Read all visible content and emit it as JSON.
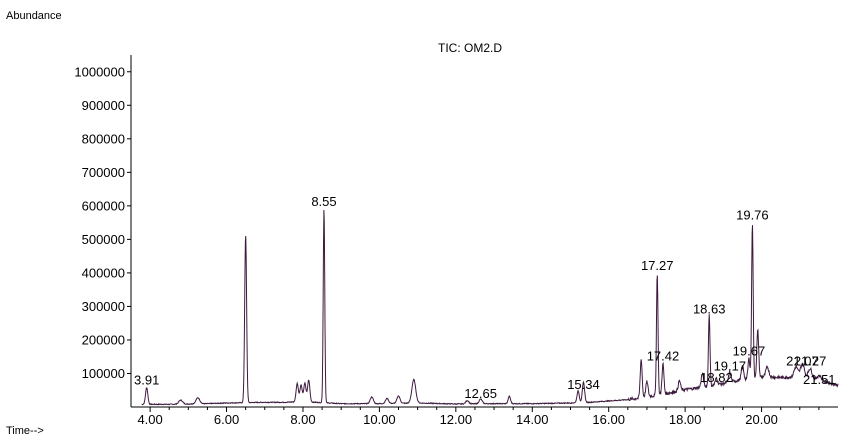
{
  "chart_data": {
    "type": "line",
    "title": "TIC: OM2.D",
    "ylabel": "Abundance",
    "xlabel": "Time-->",
    "xlim": [
      3.5,
      22.0
    ],
    "ylim": [
      0,
      1050000
    ],
    "x_ticks": [
      4.0,
      6.0,
      8.0,
      10.0,
      12.0,
      14.0,
      16.0,
      18.0,
      20.0
    ],
    "x_tick_labels": [
      "4.00",
      "6.00",
      "8.00",
      "10.00",
      "12.00",
      "14.00",
      "16.00",
      "18.00",
      "20.00"
    ],
    "y_ticks": [
      100000,
      200000,
      300000,
      400000,
      500000,
      600000,
      700000,
      800000,
      900000,
      1000000
    ],
    "y_tick_labels": [
      "100000",
      "200000",
      "300000",
      "400000",
      "500000",
      "600000",
      "700000",
      "800000",
      "900000",
      "1000000"
    ],
    "line_color": "#3d1a3d",
    "grid": false,
    "peak_labels": [
      {
        "x": 3.91,
        "y": 58000,
        "text": "3.91"
      },
      {
        "x": 8.55,
        "y": 590000,
        "text": "8.55"
      },
      {
        "x": 12.65,
        "y": 18000,
        "text": "12.65"
      },
      {
        "x": 15.34,
        "y": 45000,
        "text": "15.34"
      },
      {
        "x": 17.27,
        "y": 400000,
        "text": "17.27"
      },
      {
        "x": 17.42,
        "y": 130000,
        "text": "17.42"
      },
      {
        "x": 18.63,
        "y": 270000,
        "text": "18.63"
      },
      {
        "x": 18.82,
        "y": 65000,
        "text": "18.82"
      },
      {
        "x": 19.17,
        "y": 100000,
        "text": "19.17"
      },
      {
        "x": 19.67,
        "y": 145000,
        "text": "19.67"
      },
      {
        "x": 19.76,
        "y": 550000,
        "text": "19.76"
      },
      {
        "x": 21.07,
        "y": 115000,
        "text": "21.07"
      },
      {
        "x": 21.27,
        "y": 115000,
        "text": "21.27"
      },
      {
        "x": 21.51,
        "y": 60000,
        "text": "21.51"
      }
    ],
    "series": [
      {
        "baseline": [
          [
            3.5,
            8000
          ],
          [
            4.5,
            8000
          ],
          [
            5.5,
            10000
          ],
          [
            6.0,
            12000
          ],
          [
            7.0,
            14000
          ],
          [
            7.5,
            14000
          ],
          [
            8.0,
            16000
          ],
          [
            9.0,
            10000
          ],
          [
            10.0,
            10000
          ],
          [
            11.0,
            12000
          ],
          [
            12.0,
            9000
          ],
          [
            13.0,
            10000
          ],
          [
            14.0,
            10000
          ],
          [
            15.0,
            12000
          ],
          [
            15.5,
            14000
          ],
          [
            16.0,
            18000
          ],
          [
            16.5,
            22000
          ],
          [
            17.0,
            30000
          ],
          [
            17.5,
            40000
          ],
          [
            18.0,
            52000
          ],
          [
            18.5,
            60000
          ],
          [
            19.0,
            70000
          ],
          [
            19.5,
            82000
          ],
          [
            20.0,
            90000
          ],
          [
            20.5,
            88000
          ],
          [
            21.0,
            90000
          ],
          [
            21.5,
            80000
          ],
          [
            22.0,
            65000
          ]
        ],
        "peaks": [
          {
            "x": 3.91,
            "h": 50000,
            "w": 0.03
          },
          {
            "x": 4.8,
            "h": 12000,
            "w": 0.05
          },
          {
            "x": 5.25,
            "h": 18000,
            "w": 0.05
          },
          {
            "x": 6.5,
            "h": 500000,
            "w": 0.025
          },
          {
            "x": 7.85,
            "h": 55000,
            "w": 0.03
          },
          {
            "x": 7.95,
            "h": 50000,
            "w": 0.03
          },
          {
            "x": 8.05,
            "h": 55000,
            "w": 0.03
          },
          {
            "x": 8.15,
            "h": 65000,
            "w": 0.03
          },
          {
            "x": 8.55,
            "h": 580000,
            "w": 0.02
          },
          {
            "x": 9.8,
            "h": 20000,
            "w": 0.04
          },
          {
            "x": 10.2,
            "h": 15000,
            "w": 0.04
          },
          {
            "x": 10.5,
            "h": 22000,
            "w": 0.04
          },
          {
            "x": 10.9,
            "h": 70000,
            "w": 0.05
          },
          {
            "x": 12.3,
            "h": 10000,
            "w": 0.04
          },
          {
            "x": 12.65,
            "h": 14000,
            "w": 0.04
          },
          {
            "x": 13.4,
            "h": 22000,
            "w": 0.03
          },
          {
            "x": 15.2,
            "h": 35000,
            "w": 0.03
          },
          {
            "x": 15.34,
            "h": 60000,
            "w": 0.03
          },
          {
            "x": 16.85,
            "h": 115000,
            "w": 0.025
          },
          {
            "x": 17.0,
            "h": 45000,
            "w": 0.03
          },
          {
            "x": 17.27,
            "h": 365000,
            "w": 0.02
          },
          {
            "x": 17.42,
            "h": 90000,
            "w": 0.025
          },
          {
            "x": 17.85,
            "h": 30000,
            "w": 0.03
          },
          {
            "x": 18.45,
            "h": 40000,
            "w": 0.03
          },
          {
            "x": 18.63,
            "h": 215000,
            "w": 0.02
          },
          {
            "x": 18.82,
            "h": 20000,
            "w": 0.03
          },
          {
            "x": 19.17,
            "h": 30000,
            "w": 0.03
          },
          {
            "x": 19.5,
            "h": 40000,
            "w": 0.03
          },
          {
            "x": 19.67,
            "h": 60000,
            "w": 0.025
          },
          {
            "x": 19.76,
            "h": 465000,
            "w": 0.02
          },
          {
            "x": 19.9,
            "h": 140000,
            "w": 0.025
          },
          {
            "x": 20.15,
            "h": 30000,
            "w": 0.04
          },
          {
            "x": 20.9,
            "h": 30000,
            "w": 0.05
          },
          {
            "x": 21.07,
            "h": 40000,
            "w": 0.05
          },
          {
            "x": 21.27,
            "h": 30000,
            "w": 0.05
          },
          {
            "x": 21.51,
            "h": 15000,
            "w": 0.05
          }
        ]
      }
    ]
  }
}
